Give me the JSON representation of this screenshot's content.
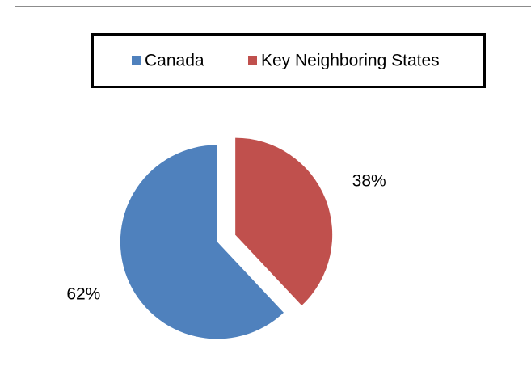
{
  "chart_data": {
    "type": "pie",
    "categories": [
      "Canada",
      "Key Neighboring States"
    ],
    "values": [
      62,
      38
    ],
    "value_labels": [
      "62%",
      "38%"
    ],
    "colors": [
      "#4f81bd",
      "#c0504d"
    ],
    "legend": "top"
  }
}
